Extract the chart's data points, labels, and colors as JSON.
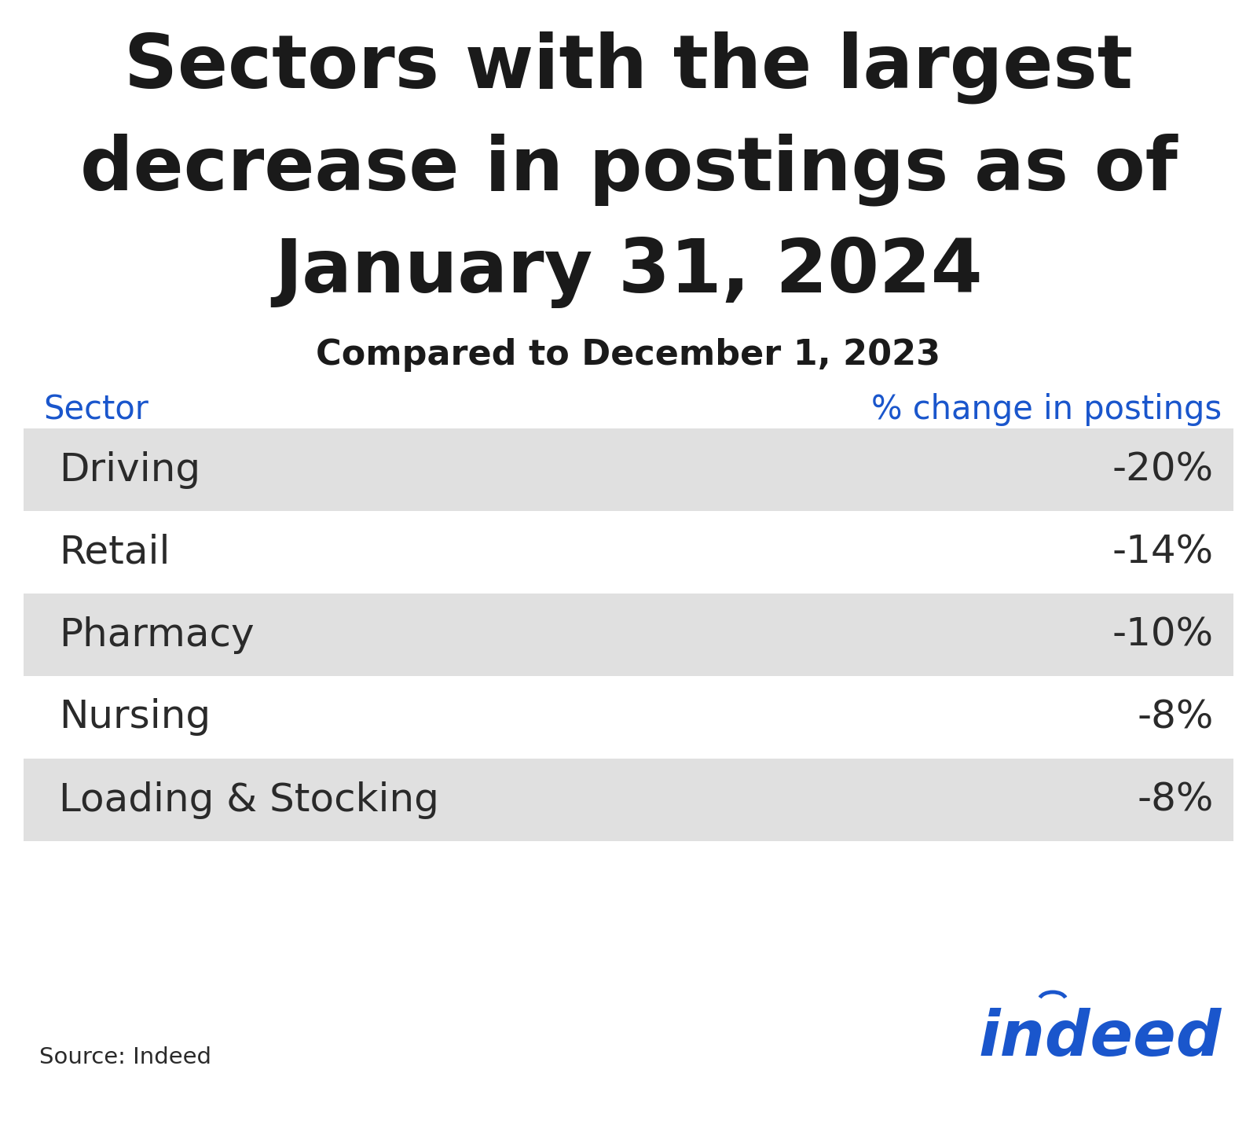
{
  "title_line1": "Sectors with the largest",
  "title_line2": "decrease in postings as of",
  "title_line3": "January 31, 2024",
  "subtitle": "Compared to December 1, 2023",
  "col_header_sector": "Sector",
  "col_header_change": "% change in postings",
  "sectors": [
    "Driving",
    "Retail",
    "Pharmacy",
    "Nursing",
    "Loading & Stocking"
  ],
  "values": [
    "-20%",
    "-14%",
    "-10%",
    "-8%",
    "-8%"
  ],
  "row_bg_odd": "#e0e0e0",
  "row_bg_even": "#ffffff",
  "header_color": "#1a56cc",
  "title_color": "#1a1a1a",
  "subtitle_color": "#1a1a1a",
  "row_text_color": "#2a2a2a",
  "source_text": "Source: Indeed",
  "indeed_color": "#1a56cc",
  "background_color": "#ffffff",
  "title_fontsize": 68,
  "subtitle_fontsize": 32,
  "header_fontsize": 30,
  "row_fontsize": 36,
  "source_fontsize": 21,
  "indeed_fontsize": 58
}
